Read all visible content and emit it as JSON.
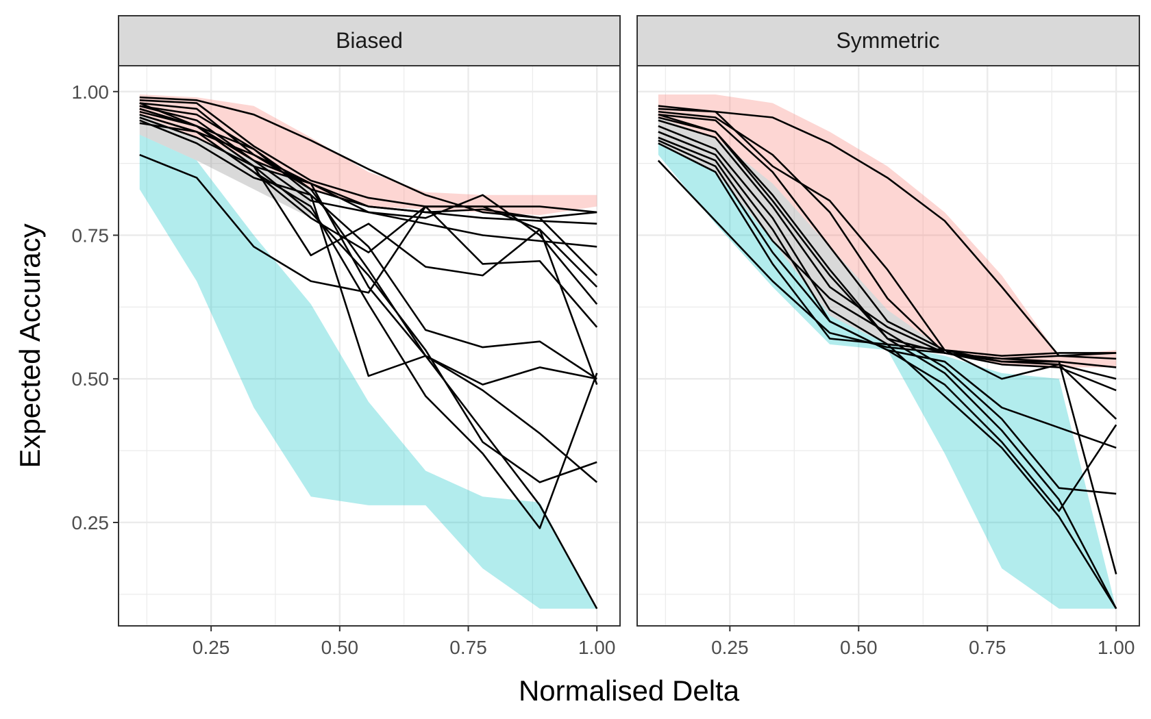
{
  "chart_data": {
    "type": "line",
    "xlabel": "Normalised Delta",
    "ylabel": "Expected Accuracy",
    "xlim": [
      0.07,
      1.045
    ],
    "ylim": [
      0.07,
      1.045
    ],
    "x_ticks": [
      0.25,
      0.5,
      0.75,
      1.0
    ],
    "x_tick_labels": [
      "0.25",
      "0.50",
      "0.75",
      "1.00"
    ],
    "y_ticks": [
      0.25,
      0.5,
      0.75,
      1.0
    ],
    "y_tick_labels": [
      "0.25",
      "0.50",
      "0.75",
      "1.00"
    ],
    "grid": true,
    "legend": "none",
    "colors": {
      "upper_band": "#F8766D",
      "lower_band": "#00BFC4",
      "lines": "#000000",
      "strip_bg": "#d9d9d9",
      "grid": "#ebebeb"
    },
    "facets": [
      {
        "name": "Biased",
        "bands": [
          {
            "color": "#F8766D",
            "x": [
              0.111,
              0.222,
              0.333,
              0.444,
              0.556,
              0.667,
              0.778,
              0.889,
              1.0
            ],
            "upper": [
              0.995,
              0.99,
              0.975,
              0.92,
              0.86,
              0.825,
              0.82,
              0.82,
              0.82
            ],
            "lower": [
              0.96,
              0.92,
              0.88,
              0.83,
              0.8,
              0.795,
              0.79,
              0.785,
              0.8
            ]
          },
          {
            "color": "#00BFC4",
            "x": [
              0.111,
              0.222,
              0.333,
              0.444,
              0.556,
              0.667,
              0.778,
              0.889,
              1.0
            ],
            "upper": [
              0.925,
              0.88,
              0.75,
              0.63,
              0.46,
              0.34,
              0.295,
              0.285,
              0.1
            ],
            "lower": [
              0.83,
              0.67,
              0.45,
              0.295,
              0.28,
              0.28,
              0.17,
              0.1,
              0.1
            ]
          },
          {
            "color": "#808080",
            "x": [
              0.111,
              0.222,
              0.333,
              0.444
            ],
            "upper": [
              0.96,
              0.92,
              0.88,
              0.83
            ],
            "lower": [
              0.925,
              0.88,
              0.83,
              0.78
            ]
          }
        ],
        "series": [
          {
            "x": [
              0.111,
              0.222,
              0.333,
              0.444,
              0.556,
              0.667,
              0.778,
              0.889,
              1.0
            ],
            "y": [
              0.99,
              0.985,
              0.96,
              0.915,
              0.865,
              0.82,
              0.79,
              0.78,
              0.79
            ]
          },
          {
            "x": [
              0.111,
              0.222,
              0.333,
              0.444,
              0.556,
              0.667,
              0.778,
              0.889,
              1.0
            ],
            "y": [
              0.985,
              0.98,
              0.905,
              0.845,
              0.815,
              0.8,
              0.8,
              0.8,
              0.79
            ]
          },
          {
            "x": [
              0.111,
              0.222,
              0.333,
              0.444,
              0.556,
              0.667,
              0.778,
              0.889,
              1.0
            ],
            "y": [
              0.98,
              0.97,
              0.89,
              0.84,
              0.8,
              0.79,
              0.78,
              0.775,
              0.77
            ]
          },
          {
            "x": [
              0.111,
              0.222,
              0.333,
              0.444,
              0.556,
              0.667,
              0.778,
              0.889,
              1.0
            ],
            "y": [
              0.975,
              0.95,
              0.88,
              0.81,
              0.79,
              0.77,
              0.75,
              0.74,
              0.73
            ]
          },
          {
            "x": [
              0.111,
              0.222,
              0.333,
              0.444,
              0.556,
              0.667,
              0.778,
              0.889,
              1.0
            ],
            "y": [
              0.97,
              0.94,
              0.9,
              0.83,
              0.8,
              0.79,
              0.795,
              0.78,
              0.68
            ]
          },
          {
            "x": [
              0.111,
              0.222,
              0.333,
              0.444,
              0.556,
              0.667,
              0.778,
              0.889,
              1.0
            ],
            "y": [
              0.965,
              0.94,
              0.87,
              0.84,
              0.79,
              0.78,
              0.82,
              0.75,
              0.63
            ]
          },
          {
            "x": [
              0.111,
              0.222,
              0.333,
              0.444,
              0.556,
              0.667,
              0.778,
              0.889,
              1.0
            ],
            "y": [
              0.96,
              0.93,
              0.86,
              0.78,
              0.72,
              0.8,
              0.7,
              0.705,
              0.59
            ]
          },
          {
            "x": [
              0.111,
              0.222,
              0.333,
              0.444,
              0.556,
              0.667,
              0.778,
              0.889,
              1.0
            ],
            "y": [
              0.955,
              0.92,
              0.87,
              0.715,
              0.77,
              0.695,
              0.68,
              0.76,
              0.49
            ]
          },
          {
            "x": [
              0.111,
              0.222,
              0.333,
              0.444,
              0.556,
              0.667,
              0.778,
              0.889,
              1.0
            ],
            "y": [
              0.95,
              0.91,
              0.85,
              0.82,
              0.73,
              0.585,
              0.555,
              0.565,
              0.5
            ]
          },
          {
            "x": [
              0.111,
              0.222,
              0.333,
              0.444,
              0.556,
              0.667,
              0.778,
              0.889,
              1.0
            ],
            "y": [
              0.945,
              0.93,
              0.89,
              0.83,
              0.69,
              0.54,
              0.49,
              0.52,
              0.5
            ]
          },
          {
            "x": [
              0.111,
              0.222,
              0.333,
              0.444,
              0.556,
              0.667,
              0.778,
              0.889,
              1.0
            ],
            "y": [
              0.975,
              0.96,
              0.9,
              0.82,
              0.505,
              0.54,
              0.48,
              0.405,
              0.32
            ]
          },
          {
            "x": [
              0.111,
              0.222,
              0.333,
              0.444,
              0.556,
              0.667,
              0.778,
              0.889,
              1.0
            ],
            "y": [
              0.98,
              0.94,
              0.87,
              0.79,
              0.68,
              0.55,
              0.39,
              0.32,
              0.355
            ]
          },
          {
            "x": [
              0.111,
              0.222,
              0.333,
              0.444,
              0.556,
              0.667,
              0.778,
              0.889,
              1.0
            ],
            "y": [
              0.96,
              0.93,
              0.86,
              0.8,
              0.63,
              0.47,
              0.37,
              0.24,
              0.51
            ]
          },
          {
            "x": [
              0.111,
              0.222,
              0.333,
              0.444,
              0.556,
              0.667,
              0.778,
              0.889,
              1.0
            ],
            "y": [
              0.97,
              0.94,
              0.88,
              0.84,
              0.66,
              0.54,
              0.41,
              0.28,
              0.1
            ]
          },
          {
            "x": [
              0.111,
              0.222,
              0.333,
              0.444,
              0.556,
              0.667,
              0.778,
              0.889,
              1.0
            ],
            "y": [
              0.89,
              0.85,
              0.73,
              0.67,
              0.65,
              0.8,
              0.8,
              0.76,
              0.66
            ]
          }
        ]
      },
      {
        "name": "Symmetric",
        "bands": [
          {
            "color": "#F8766D",
            "x": [
              0.111,
              0.222,
              0.333,
              0.444,
              0.556,
              0.667,
              0.778,
              0.889,
              1.0
            ],
            "upper": [
              0.995,
              0.995,
              0.98,
              0.93,
              0.87,
              0.79,
              0.68,
              0.54,
              0.55
            ],
            "lower": [
              0.955,
              0.92,
              0.84,
              0.73,
              0.62,
              0.55,
              0.525,
              0.52,
              0.52
            ]
          },
          {
            "color": "#808080",
            "x": [
              0.111,
              0.222,
              0.333,
              0.444,
              0.556,
              0.667
            ],
            "upper": [
              0.955,
              0.92,
              0.84,
              0.73,
              0.62,
              0.55
            ],
            "lower": [
              0.91,
              0.86,
              0.74,
              0.61,
              0.56,
              0.545
            ]
          },
          {
            "color": "#00BFC4",
            "x": [
              0.111,
              0.222,
              0.333,
              0.444,
              0.556,
              0.667,
              0.778,
              0.889,
              1.0
            ],
            "upper": [
              0.91,
              0.86,
              0.74,
              0.61,
              0.56,
              0.54,
              0.51,
              0.5,
              0.1
            ],
            "lower": [
              0.89,
              0.77,
              0.66,
              0.56,
              0.55,
              0.37,
              0.17,
              0.1,
              0.1
            ]
          }
        ],
        "series": [
          {
            "x": [
              0.111,
              0.222,
              0.333,
              0.444,
              0.556,
              0.667,
              0.778,
              0.889,
              1.0
            ],
            "y": [
              0.975,
              0.965,
              0.955,
              0.91,
              0.85,
              0.775,
              0.66,
              0.54,
              0.545
            ]
          },
          {
            "x": [
              0.111,
              0.222,
              0.333,
              0.444,
              0.556,
              0.667,
              0.778,
              0.889,
              1.0
            ],
            "y": [
              0.97,
              0.965,
              0.87,
              0.81,
              0.69,
              0.55,
              0.54,
              0.545,
              0.545
            ]
          },
          {
            "x": [
              0.111,
              0.222,
              0.333,
              0.444,
              0.556,
              0.667,
              0.778,
              0.889,
              1.0
            ],
            "y": [
              0.965,
              0.955,
              0.89,
              0.79,
              0.64,
              0.545,
              0.535,
              0.54,
              0.535
            ]
          },
          {
            "x": [
              0.111,
              0.222,
              0.333,
              0.444,
              0.556,
              0.667,
              0.778,
              0.889,
              1.0
            ],
            "y": [
              0.96,
              0.95,
              0.86,
              0.73,
              0.6,
              0.55,
              0.53,
              0.53,
              0.52
            ]
          },
          {
            "x": [
              0.111,
              0.222,
              0.333,
              0.444,
              0.556,
              0.667,
              0.778,
              0.889,
              1.0
            ],
            "y": [
              0.955,
              0.93,
              0.82,
              0.69,
              0.57,
              0.545,
              0.53,
              0.525,
              0.5
            ]
          },
          {
            "x": [
              0.111,
              0.222,
              0.333,
              0.444,
              0.556,
              0.667,
              0.778,
              0.889,
              1.0
            ],
            "y": [
              0.95,
              0.92,
              0.8,
              0.66,
              0.59,
              0.545,
              0.525,
              0.52,
              0.48
            ]
          },
          {
            "x": [
              0.111,
              0.222,
              0.333,
              0.444,
              0.556,
              0.667,
              0.778,
              0.889,
              1.0
            ],
            "y": [
              0.94,
              0.9,
              0.78,
              0.62,
              0.56,
              0.55,
              0.5,
              0.525,
              0.43
            ]
          },
          {
            "x": [
              0.111,
              0.222,
              0.333,
              0.444,
              0.556,
              0.667,
              0.778,
              0.889,
              1.0
            ],
            "y": [
              0.93,
              0.89,
              0.76,
              0.6,
              0.55,
              0.53,
              0.45,
              0.415,
              0.38
            ]
          },
          {
            "x": [
              0.111,
              0.222,
              0.333,
              0.444,
              0.556,
              0.667,
              0.778,
              0.889,
              1.0
            ],
            "y": [
              0.92,
              0.88,
              0.74,
              0.64,
              0.58,
              0.52,
              0.43,
              0.31,
              0.3
            ]
          },
          {
            "x": [
              0.111,
              0.222,
              0.333,
              0.444,
              0.556,
              0.667,
              0.778,
              0.889,
              1.0
            ],
            "y": [
              0.915,
              0.87,
              0.72,
              0.6,
              0.55,
              0.49,
              0.39,
              0.27,
              0.42
            ]
          },
          {
            "x": [
              0.111,
              0.222,
              0.333,
              0.444,
              0.556,
              0.667,
              0.778,
              0.889,
              1.0
            ],
            "y": [
              0.91,
              0.86,
              0.7,
              0.57,
              0.56,
              0.47,
              0.38,
              0.26,
              0.1
            ]
          },
          {
            "x": [
              0.111,
              0.222,
              0.333,
              0.444,
              0.556,
              0.667,
              0.778,
              0.889,
              1.0
            ],
            "y": [
              0.96,
              0.93,
              0.81,
              0.68,
              0.57,
              0.51,
              0.41,
              0.29,
              0.1
            ]
          },
          {
            "x": [
              0.111,
              0.222,
              0.333,
              0.444,
              0.556,
              0.667,
              0.778,
              0.889,
              1.0
            ],
            "y": [
              0.88,
              0.775,
              0.67,
              0.58,
              0.555,
              0.545,
              0.535,
              0.53,
              0.16
            ]
          }
        ]
      }
    ]
  }
}
